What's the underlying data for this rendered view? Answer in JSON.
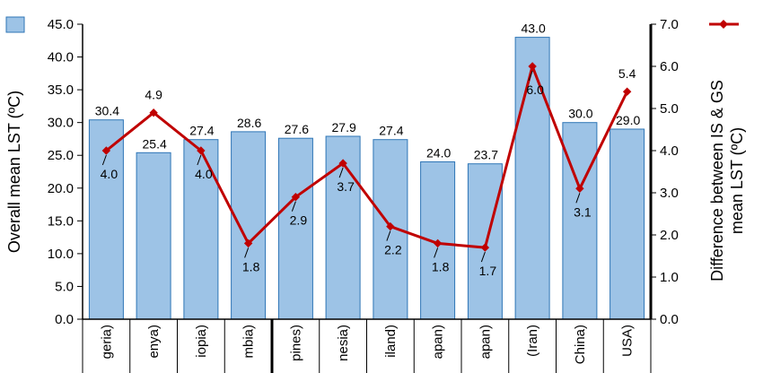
{
  "chart_data": {
    "type": "bar",
    "categories": [
      "geria)",
      "enya)",
      "iopia)",
      "mbia)",
      "pines)",
      "nesia)",
      "iland)",
      "apan)",
      "apan)",
      "(Iran)",
      "China)",
      "USA)"
    ],
    "series": [
      {
        "type": "bar",
        "axis": "left",
        "values": [
          30.4,
          25.4,
          27.4,
          28.6,
          27.6,
          27.9,
          27.4,
          24.0,
          23.7,
          43.0,
          30.0,
          29.0
        ],
        "labels": [
          "30.4",
          "25.4",
          "27.4",
          "28.6",
          "27.6",
          "27.9",
          "27.4",
          "24.0",
          "23.7",
          "43.0",
          "30.0",
          "29.0"
        ],
        "color": "#9dc3e6",
        "border": "#2e75b6"
      },
      {
        "type": "line",
        "axis": "right",
        "values": [
          4.0,
          4.9,
          4.0,
          1.8,
          2.9,
          3.7,
          2.2,
          1.8,
          1.7,
          6.0,
          3.1,
          5.4
        ],
        "labels": [
          "4.0",
          "4.9",
          "4.0",
          "1.8",
          "2.9",
          "3.7",
          "2.2",
          "1.8",
          "1.7",
          "6.0",
          "3.1",
          "5.4"
        ],
        "color": "#c00000"
      }
    ],
    "ylabel": "Overall mean LST (ºC)",
    "y2label_lines": [
      "Difference between IS & GS",
      "mean LST (ºC)"
    ],
    "ylim": [
      0,
      45
    ],
    "y2lim": [
      0,
      7
    ],
    "yticks": [
      "0.0",
      "5.0",
      "10.0",
      "15.0",
      "20.0",
      "25.0",
      "30.0",
      "35.0",
      "40.0",
      "45.0"
    ],
    "y2ticks": [
      "0.0",
      "1.0",
      "2.0",
      "3.0",
      "4.0",
      "5.0",
      "6.0",
      "7.0"
    ],
    "grid": false,
    "legend": "top-left and top-right, unlabeled markers"
  }
}
